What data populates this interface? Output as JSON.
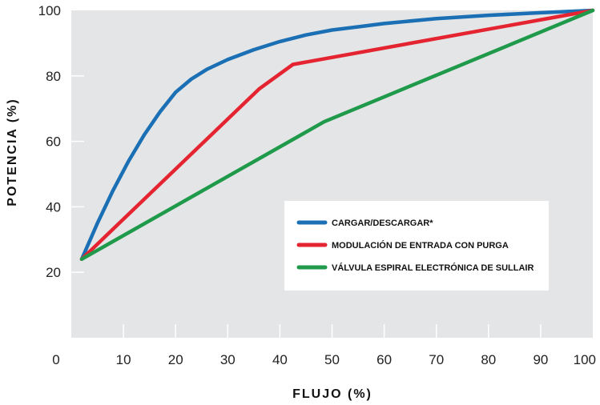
{
  "chart_data": {
    "type": "line",
    "xlabel": "FLUJO (%)",
    "ylabel": "POTENCIA (%)",
    "xlim": [
      0,
      100
    ],
    "ylim": [
      0,
      100
    ],
    "x_ticks": [
      0,
      10,
      20,
      30,
      40,
      50,
      60,
      70,
      80,
      90,
      100
    ],
    "y_ticks": [
      20,
      40,
      60,
      80,
      100
    ],
    "grid": false,
    "legend_position": "right",
    "background_color": "#e4e5e6",
    "series": [
      {
        "name": "CARGAR/DESCARGAR*",
        "color": "#1a6fb5",
        "x": [
          2,
          5,
          8,
          11,
          14,
          17,
          20,
          23,
          26,
          30,
          35,
          40,
          45,
          50,
          55,
          60,
          70,
          80,
          90,
          100
        ],
        "y": [
          24,
          35,
          45,
          54,
          62,
          69,
          75,
          79,
          82,
          85,
          88,
          90.5,
          92.5,
          94,
          95,
          96,
          97.5,
          98.5,
          99.3,
          100
        ]
      },
      {
        "name": "MODULACIÓN DE ENTRADA CON PURGA",
        "color": "#e52431",
        "x": [
          2,
          36,
          42.5,
          100
        ],
        "y": [
          24,
          76,
          83.5,
          100
        ]
      },
      {
        "name": "VÁLVULA ESPIRAL ELECTRÓNICA DE SULLAIR",
        "color": "#1f9a4b",
        "x": [
          2,
          48.5,
          100
        ],
        "y": [
          24,
          66,
          100
        ]
      }
    ]
  }
}
